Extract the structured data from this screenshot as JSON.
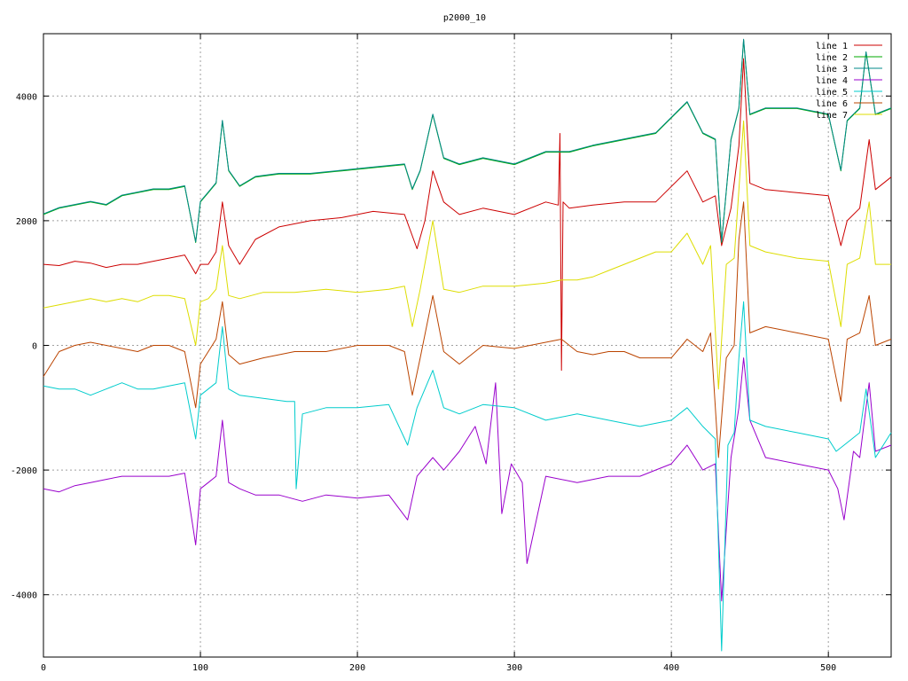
{
  "chart_data": {
    "type": "line",
    "title": "p2000_10",
    "xlabel": "",
    "ylabel": "",
    "xlim": [
      0,
      540
    ],
    "ylim": [
      -5000,
      5000
    ],
    "xticks": [
      0,
      100,
      200,
      300,
      400,
      500
    ],
    "yticks": [
      -4000,
      -2000,
      0,
      2000,
      4000
    ],
    "xtick_labels": [
      "0",
      "100",
      "200",
      "300",
      "400",
      "500"
    ],
    "ytick_labels": [
      "-4000",
      "-2000",
      "0",
      "2000",
      "4000"
    ],
    "grid": true,
    "legend_position": "top-right",
    "series": [
      {
        "name": "line 1",
        "color": "#cc0000",
        "x": [
          0,
          10,
          20,
          30,
          40,
          50,
          60,
          70,
          80,
          90,
          97,
          100,
          105,
          110,
          114,
          118,
          125,
          135,
          150,
          170,
          190,
          210,
          230,
          238,
          243,
          248,
          255,
          265,
          280,
          300,
          320,
          328,
          329,
          330,
          331,
          335,
          350,
          370,
          390,
          410,
          420,
          428,
          432,
          438,
          443,
          446,
          450,
          460,
          480,
          500,
          508,
          512,
          520,
          526,
          530,
          540
        ],
        "y": [
          1300,
          1280,
          1350,
          1320,
          1250,
          1300,
          1300,
          1350,
          1400,
          1450,
          1150,
          1300,
          1300,
          1500,
          2300,
          1600,
          1300,
          1700,
          1900,
          2000,
          2050,
          2150,
          2100,
          1550,
          2000,
          2800,
          2300,
          2100,
          2200,
          2100,
          2300,
          2250,
          3400,
          -400,
          2300,
          2200,
          2250,
          2300,
          2300,
          2800,
          2300,
          2400,
          1600,
          2200,
          3200,
          4600,
          2600,
          2500,
          2450,
          2400,
          1600,
          2000,
          2200,
          3300,
          2500,
          2700
        ]
      },
      {
        "name": "line 2",
        "color": "#00aa00",
        "x": [
          0,
          10,
          20,
          30,
          40,
          50,
          60,
          70,
          80,
          90,
          97,
          100,
          105,
          110,
          114,
          118,
          125,
          135,
          150,
          170,
          190,
          210,
          230,
          235,
          240,
          248,
          255,
          265,
          280,
          300,
          320,
          330,
          335,
          350,
          370,
          390,
          410,
          420,
          428,
          432,
          438,
          443,
          446,
          450,
          460,
          480,
          500,
          508,
          512,
          520,
          524,
          530,
          540
        ],
        "y": [
          2100,
          2200,
          2250,
          2300,
          2250,
          2400,
          2450,
          2500,
          2500,
          2550,
          1650,
          2300,
          2450,
          2600,
          3600,
          2800,
          2550,
          2700,
          2750,
          2750,
          2800,
          2850,
          2900,
          2500,
          2800,
          3700,
          3000,
          2900,
          3000,
          2900,
          3100,
          3100,
          3100,
          3200,
          3300,
          3400,
          3900,
          3400,
          3300,
          1650,
          3300,
          3800,
          4900,
          3700,
          3800,
          3800,
          3700,
          2800,
          3600,
          3800,
          4700,
          3700,
          3800
        ]
      },
      {
        "name": "line 3",
        "color": "#008888",
        "x": [
          0,
          10,
          20,
          30,
          40,
          50,
          60,
          70,
          80,
          90,
          97,
          100,
          105,
          110,
          114,
          118,
          125,
          135,
          150,
          170,
          190,
          210,
          230,
          235,
          240,
          248,
          255,
          265,
          280,
          300,
          320,
          330,
          335,
          350,
          370,
          390,
          410,
          420,
          428,
          432,
          438,
          443,
          446,
          450,
          460,
          480,
          500,
          508,
          512,
          520,
          524,
          530,
          540
        ],
        "y": [
          2110,
          2210,
          2260,
          2310,
          2260,
          2410,
          2460,
          2510,
          2510,
          2560,
          1660,
          2310,
          2460,
          2610,
          3610,
          2810,
          2560,
          2710,
          2760,
          2760,
          2810,
          2860,
          2910,
          2510,
          2810,
          3710,
          3010,
          2910,
          3010,
          2910,
          3110,
          3110,
          3110,
          3210,
          3310,
          3410,
          3910,
          3410,
          3310,
          1660,
          3310,
          3810,
          4910,
          3710,
          3810,
          3810,
          3710,
          2810,
          3610,
          3810,
          4710,
          3710,
          3810
        ]
      },
      {
        "name": "line 4",
        "color": "#9900cc",
        "x": [
          0,
          10,
          20,
          30,
          40,
          50,
          60,
          70,
          80,
          90,
          97,
          100,
          105,
          110,
          114,
          118,
          125,
          135,
          150,
          165,
          180,
          200,
          220,
          232,
          238,
          248,
          255,
          265,
          275,
          282,
          288,
          292,
          298,
          305,
          308,
          320,
          340,
          360,
          380,
          400,
          410,
          420,
          428,
          432,
          438,
          443,
          446,
          450,
          460,
          480,
          500,
          506,
          510,
          516,
          520,
          526,
          530,
          540
        ],
        "y": [
          -2300,
          -2350,
          -2250,
          -2200,
          -2150,
          -2100,
          -2100,
          -2100,
          -2100,
          -2050,
          -3200,
          -2300,
          -2200,
          -2100,
          -1200,
          -2200,
          -2300,
          -2400,
          -2400,
          -2500,
          -2400,
          -2450,
          -2400,
          -2800,
          -2100,
          -1800,
          -2000,
          -1700,
          -1300,
          -1900,
          -600,
          -2700,
          -1900,
          -2200,
          -3500,
          -2100,
          -2200,
          -2100,
          -2100,
          -1900,
          -1600,
          -2000,
          -1900,
          -4100,
          -1800,
          -1000,
          -200,
          -1200,
          -1800,
          -1900,
          -2000,
          -2300,
          -2800,
          -1700,
          -1800,
          -600,
          -1700,
          -1600
        ]
      },
      {
        "name": "line 5",
        "color": "#00cccc",
        "x": [
          0,
          10,
          20,
          30,
          40,
          50,
          60,
          70,
          80,
          90,
          97,
          100,
          105,
          110,
          114,
          118,
          125,
          140,
          155,
          160,
          161,
          165,
          180,
          200,
          220,
          232,
          238,
          248,
          255,
          265,
          280,
          300,
          320,
          340,
          360,
          380,
          400,
          410,
          420,
          428,
          432,
          436,
          440,
          443,
          446,
          450,
          460,
          480,
          500,
          505,
          510,
          515,
          520,
          524,
          530,
          540
        ],
        "y": [
          -650,
          -700,
          -700,
          -800,
          -700,
          -600,
          -700,
          -700,
          -650,
          -600,
          -1500,
          -800,
          -700,
          -600,
          300,
          -700,
          -800,
          -850,
          -900,
          -900,
          -2300,
          -1100,
          -1000,
          -1000,
          -950,
          -1600,
          -1000,
          -400,
          -1000,
          -1100,
          -950,
          -1000,
          -1200,
          -1100,
          -1200,
          -1300,
          -1200,
          -1000,
          -1300,
          -1500,
          -4900,
          -1600,
          -1400,
          -200,
          700,
          -1200,
          -1300,
          -1400,
          -1500,
          -1700,
          -1600,
          -1500,
          -1400,
          -700,
          -1800,
          -1400
        ]
      },
      {
        "name": "line 6",
        "color": "#bb4400",
        "x": [
          0,
          10,
          20,
          30,
          40,
          50,
          60,
          70,
          80,
          90,
          97,
          100,
          105,
          110,
          114,
          118,
          125,
          140,
          160,
          180,
          200,
          220,
          230,
          235,
          240,
          248,
          255,
          265,
          280,
          300,
          320,
          330,
          340,
          350,
          360,
          370,
          380,
          390,
          400,
          410,
          420,
          425,
          430,
          435,
          440,
          443,
          446,
          450,
          460,
          480,
          500,
          508,
          512,
          520,
          526,
          530,
          540
        ],
        "y": [
          -500,
          -100,
          0,
          50,
          0,
          -50,
          -100,
          0,
          0,
          -100,
          -1000,
          -300,
          -100,
          100,
          700,
          -150,
          -300,
          -200,
          -100,
          -100,
          0,
          0,
          -100,
          -800,
          -200,
          800,
          -100,
          -300,
          0,
          -50,
          50,
          100,
          -100,
          -150,
          -100,
          -100,
          -200,
          -200,
          -200,
          100,
          -100,
          200,
          -1800,
          -200,
          0,
          1700,
          2300,
          200,
          300,
          200,
          100,
          -900,
          100,
          200,
          800,
          0,
          100
        ]
      },
      {
        "name": "line 7",
        "color": "#dddd00",
        "x": [
          0,
          10,
          20,
          30,
          40,
          50,
          60,
          70,
          80,
          90,
          97,
          100,
          105,
          110,
          114,
          118,
          125,
          140,
          160,
          180,
          200,
          220,
          230,
          235,
          240,
          248,
          255,
          265,
          280,
          300,
          320,
          330,
          340,
          350,
          360,
          370,
          380,
          390,
          400,
          410,
          420,
          425,
          430,
          435,
          440,
          443,
          446,
          450,
          460,
          480,
          500,
          508,
          512,
          520,
          526,
          530,
          540
        ],
        "y": [
          600,
          650,
          700,
          750,
          700,
          750,
          700,
          800,
          800,
          750,
          0,
          700,
          750,
          900,
          1600,
          800,
          750,
          850,
          850,
          900,
          850,
          900,
          950,
          300,
          900,
          2000,
          900,
          850,
          950,
          950,
          1000,
          1050,
          1050,
          1100,
          1200,
          1300,
          1400,
          1500,
          1500,
          1800,
          1300,
          1600,
          -700,
          1300,
          1400,
          2500,
          3600,
          1600,
          1500,
          1400,
          1350,
          300,
          1300,
          1400,
          2300,
          1300,
          1300
        ]
      }
    ]
  }
}
